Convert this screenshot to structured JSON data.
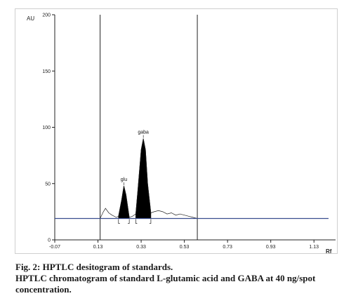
{
  "chart_data": {
    "type": "line",
    "ylabel": "AU",
    "xlabel": "Rf",
    "ylim": [
      0,
      200
    ],
    "xlim": [
      -0.07,
      1.23
    ],
    "yticks": [
      0,
      50,
      100,
      150,
      200
    ],
    "xticks": [
      -0.07,
      0.13,
      0.33,
      0.53,
      0.73,
      0.93,
      1.13
    ],
    "xtick_labels": [
      "-0.07",
      "0.13",
      "0.33",
      "0.53",
      "0.73",
      "0.93",
      "1.13"
    ],
    "baseline": 19,
    "markers_x": [
      0.14,
      0.59
    ],
    "peaks": [
      {
        "label": "glu",
        "x": 0.25,
        "y": 48,
        "start": 0.225,
        "end": 0.275
      },
      {
        "label": "gaba",
        "x": 0.34,
        "y": 90,
        "start": 0.305,
        "end": 0.375
      }
    ],
    "trace": [
      [
        0.14,
        19
      ],
      [
        0.155,
        25
      ],
      [
        0.165,
        28
      ],
      [
        0.18,
        24
      ],
      [
        0.195,
        22
      ],
      [
        0.215,
        20
      ],
      [
        0.225,
        21
      ],
      [
        0.24,
        36
      ],
      [
        0.25,
        48
      ],
      [
        0.26,
        40
      ],
      [
        0.275,
        20
      ],
      [
        0.29,
        21
      ],
      [
        0.305,
        23
      ],
      [
        0.315,
        45
      ],
      [
        0.33,
        80
      ],
      [
        0.34,
        90
      ],
      [
        0.35,
        80
      ],
      [
        0.36,
        50
      ],
      [
        0.375,
        24
      ],
      [
        0.39,
        25
      ],
      [
        0.41,
        26
      ],
      [
        0.43,
        25
      ],
      [
        0.45,
        23
      ],
      [
        0.47,
        24
      ],
      [
        0.49,
        22
      ],
      [
        0.51,
        23
      ],
      [
        0.53,
        22
      ],
      [
        0.55,
        21
      ],
      [
        0.57,
        20
      ],
      [
        0.59,
        19
      ]
    ]
  },
  "caption": {
    "line1": "Fig. 2: HPTLC desitogram of standards.",
    "line2": "HPTLC chromatogram of standard L-glutamic acid and GABA at 40 ng/spot concentration."
  },
  "colors": {
    "baseline": "#3a4d8f",
    "peak_fill": "#000000",
    "trace": "#222222"
  }
}
